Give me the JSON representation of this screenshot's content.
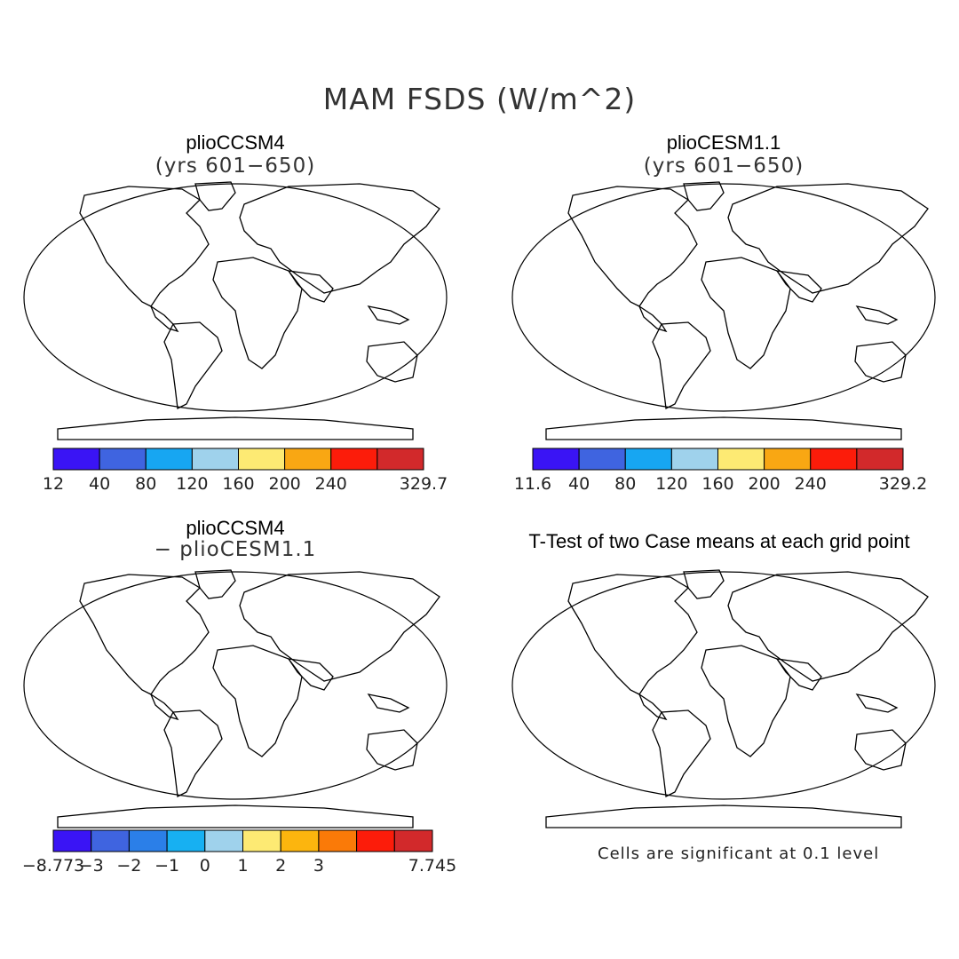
{
  "title": "MAM FSDS (W/m^2)",
  "panels": [
    {
      "title": "plioCCSM4",
      "subtitle": "(yrs 601−650)"
    },
    {
      "title": "plioCESM1.1",
      "subtitle": "(yrs 601−650)"
    },
    {
      "title": "plioCCSM4",
      "subtitle": "− plioCESM1.1"
    },
    {
      "title": "T-Test of two Case means at each grid point",
      "subtitle": ""
    }
  ],
  "colorbars": [
    {
      "colors": [
        "#3a14f5",
        "#3f64e0",
        "#17a6f2",
        "#9fd2ec",
        "#fdea73",
        "#f9a713",
        "#fc1c0a",
        "#d2292b"
      ],
      "labels": [
        "12",
        "40",
        "80",
        "120",
        "160",
        "200",
        "240",
        "329.7"
      ]
    },
    {
      "colors": [
        "#3a14f5",
        "#3f64e0",
        "#17a6f2",
        "#9fd2ec",
        "#fdea73",
        "#f9a713",
        "#fc1c0a",
        "#d2292b"
      ],
      "labels": [
        "11.6",
        "40",
        "80",
        "120",
        "160",
        "200",
        "240",
        "329.2"
      ]
    },
    {
      "colors": [
        "#3a14f5",
        "#3f64e0",
        "#2b7fe8",
        "#17b0f2",
        "#9fd2ec",
        "#fdea73",
        "#fcb50e",
        "#fa7a08",
        "#fc1c0a",
        "#d2292b"
      ],
      "labels": [
        "−8.773",
        "−3",
        "−2",
        "−1",
        "0",
        "1",
        "2",
        "3",
        "7.745"
      ]
    }
  ],
  "note": "Cells are significant at 0.1 level"
}
